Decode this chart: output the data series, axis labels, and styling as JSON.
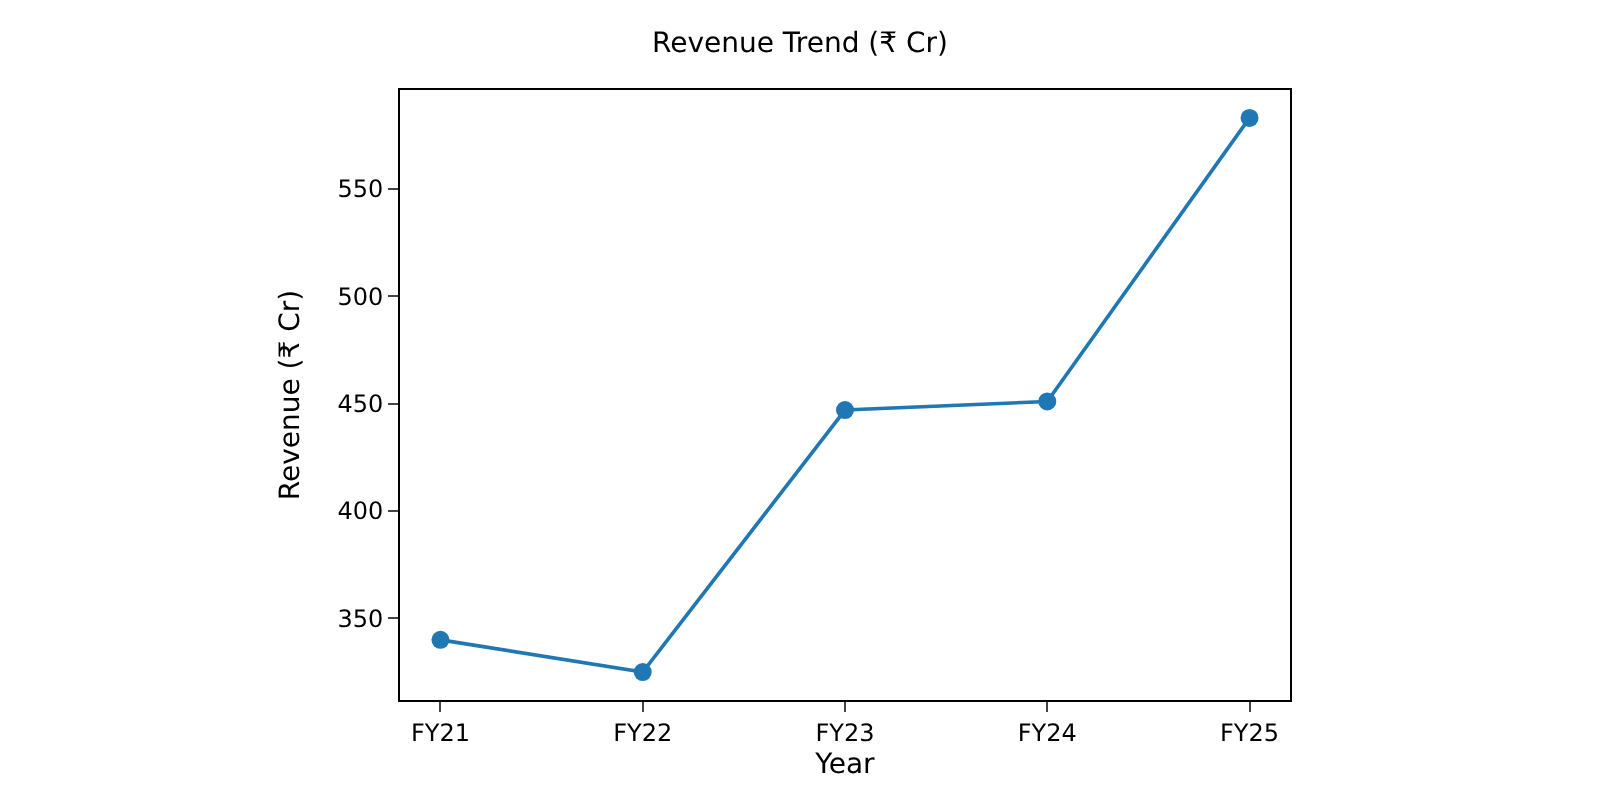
{
  "chart_data": {
    "type": "line",
    "title": "Revenue Trend (₹ Cr)",
    "xlabel": "Year",
    "ylabel": "Revenue (₹ Cr)",
    "categories": [
      "FY21",
      "FY22",
      "FY23",
      "FY24",
      "FY25"
    ],
    "series": [
      {
        "color": "#1f77b4",
        "values": [
          340,
          325,
          447,
          451,
          583
        ]
      }
    ],
    "ylim": [
      312,
      596
    ],
    "yticks": [
      350,
      400,
      450,
      500,
      550
    ],
    "marker": "circle",
    "line_style": "solid"
  }
}
